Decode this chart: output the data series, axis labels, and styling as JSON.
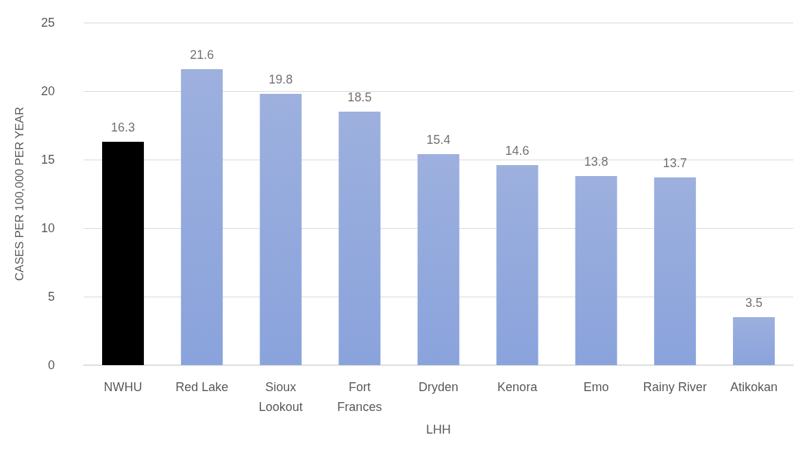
{
  "chart_data": {
    "type": "bar",
    "xlabel": "LHH",
    "ylabel": "CASES PER 100,000 PER YEAR",
    "categories": [
      "NWHU",
      "Red Lake",
      "Sioux\nLookout",
      "Fort\nFrances",
      "Dryden",
      "Kenora",
      "Emo",
      "Rainy River",
      "Atikokan"
    ],
    "values": [
      16.3,
      21.6,
      19.8,
      18.5,
      15.4,
      14.6,
      13.8,
      13.7,
      3.5
    ],
    "colors": [
      "#000000",
      "#9db0de",
      "#9db0de",
      "#9db0de",
      "#9db0de",
      "#9db0de",
      "#9db0de",
      "#9db0de",
      "#9db0de"
    ],
    "ylim": [
      0,
      25
    ],
    "yticks": [
      0,
      5,
      10,
      15,
      20,
      25
    ],
    "grid": "y",
    "data_labels": true
  }
}
